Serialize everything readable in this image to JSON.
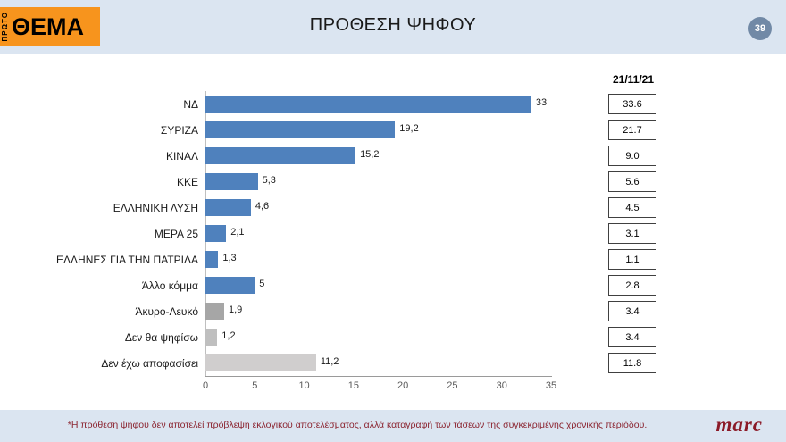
{
  "header": {
    "title": "ΠΡΟΘΕΣΗ ΨΗΦΟΥ",
    "page_badge": "39",
    "logo": {
      "top_text": "ΠΡΩΤΟ",
      "main_text": "ΘΕΜΑ"
    }
  },
  "chart_data": {
    "type": "bar",
    "orientation": "horizontal",
    "title": "ΠΡΟΘΕΣΗ ΨΗΦΟΥ",
    "categories": [
      "ΝΔ",
      "ΣΥΡΙΖΑ",
      "ΚΙΝΑΛ",
      "ΚΚΕ",
      "ΕΛΛΗΝΙΚΗ ΛΥΣΗ",
      "ΜΕΡΑ 25",
      "ΕΛΛΗΝΕΣ ΓΙΑ ΤΗΝ ΠΑΤΡΙΔΑ",
      "Άλλο κόμμα",
      "Άκυρο-Λευκό",
      "Δεν θα ψηφίσω",
      "Δεν έχω αποφασίσει"
    ],
    "values": [
      33,
      19.2,
      15.2,
      5.3,
      4.6,
      2.1,
      1.3,
      5,
      1.9,
      1.2,
      11.2
    ],
    "value_labels": [
      "33",
      "19,2",
      "15,2",
      "5,3",
      "4,6",
      "2,1",
      "1,3",
      "5",
      "1,9",
      "1,2",
      "11,2"
    ],
    "bar_colors": [
      "#4f81bd",
      "#4f81bd",
      "#4f81bd",
      "#4f81bd",
      "#4f81bd",
      "#4f81bd",
      "#4f81bd",
      "#4f81bd",
      "#a6a6a6",
      "#bfbfbf",
      "#d0cece"
    ],
    "previous_column": {
      "header": "21/11/21",
      "values": [
        "33.6",
        "21.7",
        "9.0",
        "5.6",
        "4.5",
        "3.1",
        "1.1",
        "2.8",
        "3.4",
        "3.4",
        "11.8"
      ]
    },
    "xlim": [
      0,
      35
    ],
    "x_ticks": [
      "0",
      "5",
      "10",
      "15",
      "20",
      "25",
      "30",
      "35"
    ],
    "grid": false,
    "legend": "none"
  },
  "footer": {
    "note": "*Η πρόθεση ψήφου δεν αποτελεί πρόβλεψη εκλογικού αποτελέσματος, αλλά καταγραφή των τάσεων της συγκεκριμένης χρονικής περιόδου.",
    "brand": "marc"
  },
  "colors": {
    "band_background": "#dbe5f1",
    "bar_blue": "#4f81bd",
    "bar_gray": "#a6a6a6",
    "bar_light_gray": "#d0cece",
    "logo_orange": "#f7941d",
    "badge_slate": "#7189a6",
    "footnote_maroon": "#8b2430"
  }
}
